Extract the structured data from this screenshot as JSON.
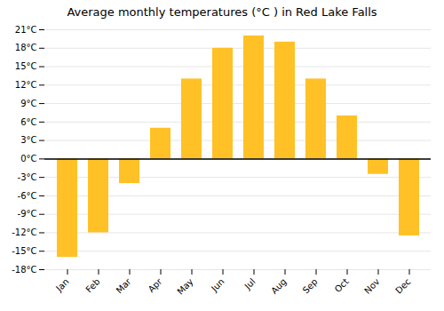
{
  "chart_data": {
    "type": "bar",
    "title": "Average monthly temperatures (°C ) in Red Lake Falls",
    "categories": [
      "Jan",
      "Feb",
      "Mar",
      "Apr",
      "May",
      "Jun",
      "Jul",
      "Aug",
      "Sep",
      "Oct",
      "Nov",
      "Dec"
    ],
    "values": [
      -16,
      -12,
      -4,
      5,
      13,
      18,
      20,
      19,
      13,
      7,
      -2.5,
      -12.5
    ],
    "color": "#FFC125",
    "ylim": [
      -18,
      21
    ],
    "yticks": [
      {
        "value": -18,
        "label": "-18°C"
      },
      {
        "value": -15,
        "label": "-15°C"
      },
      {
        "value": -12,
        "label": "-12°C"
      },
      {
        "value": -9,
        "label": "-9°C"
      },
      {
        "value": -6,
        "label": "-6°C"
      },
      {
        "value": -3,
        "label": "-3°C"
      },
      {
        "value": 0,
        "label": "0°C"
      },
      {
        "value": 3,
        "label": "3°C"
      },
      {
        "value": 6,
        "label": "6°C"
      },
      {
        "value": 9,
        "label": "9°C"
      },
      {
        "value": 12,
        "label": "12°C"
      },
      {
        "value": 15,
        "label": "15°C"
      },
      {
        "value": 18,
        "label": "18°C"
      },
      {
        "value": 21,
        "label": "21°C"
      }
    ],
    "grid": true
  }
}
